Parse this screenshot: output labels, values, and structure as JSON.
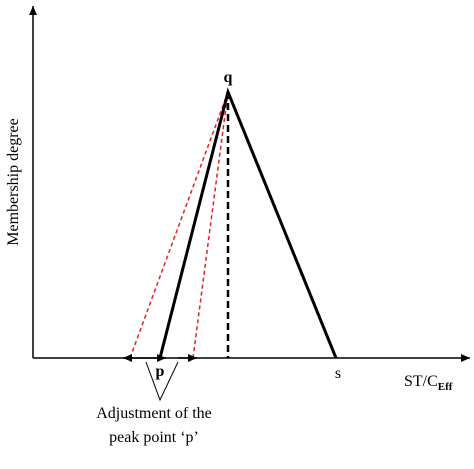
{
  "axes": {
    "y_label": "Membership degree",
    "x_label": {
      "main": "ST/C",
      "sub": "Eff"
    }
  },
  "points": {
    "p": "p",
    "q": "q",
    "s": "s"
  },
  "annotation": {
    "line1": "Adjustment of the",
    "line2": "peak point ‘p’"
  }
}
